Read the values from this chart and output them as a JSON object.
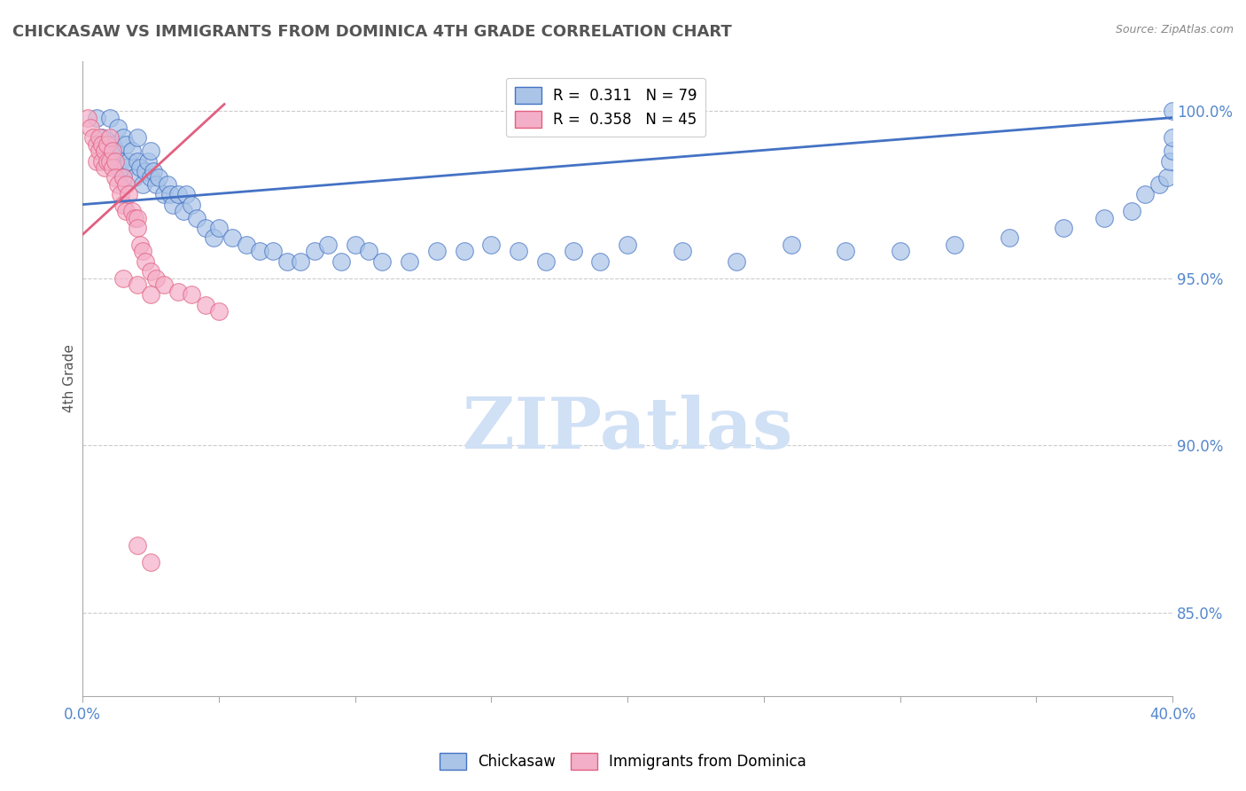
{
  "title": "CHICKASAW VS IMMIGRANTS FROM DOMINICA 4TH GRADE CORRELATION CHART",
  "source_text": "Source: ZipAtlas.com",
  "ylabel": "4th Grade",
  "xlim": [
    0.0,
    0.4
  ],
  "ylim": [
    0.825,
    1.015
  ],
  "yticks": [
    0.85,
    0.9,
    0.95,
    1.0
  ],
  "ytick_labels": [
    "85.0%",
    "90.0%",
    "95.0%",
    "100.0%"
  ],
  "xticks": [
    0.0,
    0.05,
    0.1,
    0.15,
    0.2,
    0.25,
    0.3,
    0.35,
    0.4
  ],
  "xtick_labels": [
    "0.0%",
    "",
    "",
    "",
    "",
    "",
    "",
    "",
    "40.0%"
  ],
  "blue_R": 0.311,
  "blue_N": 79,
  "pink_R": 0.358,
  "pink_N": 45,
  "blue_color": "#aac4e8",
  "pink_color": "#f4afc8",
  "blue_line_color": "#4472c4",
  "pink_line_color": "#e06080",
  "legend_label_blue": "Chickasaw",
  "legend_label_pink": "Immigrants from Dominica",
  "watermark": "ZIPatlas",
  "watermark_color": "#d0e0f5",
  "axis_color": "#5588cc",
  "grid_color": "#cccccc",
  "blue_x": [
    0.005,
    0.007,
    0.008,
    0.009,
    0.01,
    0.01,
    0.011,
    0.012,
    0.013,
    0.013,
    0.014,
    0.015,
    0.015,
    0.016,
    0.016,
    0.017,
    0.018,
    0.019,
    0.02,
    0.02,
    0.021,
    0.022,
    0.023,
    0.024,
    0.025,
    0.025,
    0.026,
    0.027,
    0.028,
    0.03,
    0.031,
    0.032,
    0.033,
    0.035,
    0.037,
    0.038,
    0.04,
    0.042,
    0.045,
    0.048,
    0.05,
    0.055,
    0.06,
    0.065,
    0.07,
    0.075,
    0.08,
    0.085,
    0.09,
    0.095,
    0.1,
    0.105,
    0.11,
    0.12,
    0.13,
    0.14,
    0.15,
    0.16,
    0.17,
    0.18,
    0.19,
    0.2,
    0.22,
    0.24,
    0.26,
    0.28,
    0.3,
    0.32,
    0.34,
    0.36,
    0.375,
    0.385,
    0.39,
    0.395,
    0.398,
    0.399,
    0.4,
    0.4,
    0.4
  ],
  "blue_y": [
    0.998,
    0.992,
    0.99,
    0.988,
    0.985,
    0.998,
    0.99,
    0.988,
    0.995,
    0.983,
    0.985,
    0.992,
    0.98,
    0.99,
    0.983,
    0.985,
    0.988,
    0.98,
    0.985,
    0.992,
    0.983,
    0.978,
    0.982,
    0.985,
    0.98,
    0.988,
    0.982,
    0.978,
    0.98,
    0.975,
    0.978,
    0.975,
    0.972,
    0.975,
    0.97,
    0.975,
    0.972,
    0.968,
    0.965,
    0.962,
    0.965,
    0.962,
    0.96,
    0.958,
    0.958,
    0.955,
    0.955,
    0.958,
    0.96,
    0.955,
    0.96,
    0.958,
    0.955,
    0.955,
    0.958,
    0.958,
    0.96,
    0.958,
    0.955,
    0.958,
    0.955,
    0.96,
    0.958,
    0.955,
    0.96,
    0.958,
    0.958,
    0.96,
    0.962,
    0.965,
    0.968,
    0.97,
    0.975,
    0.978,
    0.98,
    0.985,
    0.988,
    0.992,
    1.0
  ],
  "pink_x": [
    0.002,
    0.003,
    0.004,
    0.005,
    0.005,
    0.006,
    0.006,
    0.007,
    0.007,
    0.008,
    0.008,
    0.009,
    0.009,
    0.01,
    0.01,
    0.011,
    0.011,
    0.012,
    0.012,
    0.013,
    0.014,
    0.015,
    0.015,
    0.016,
    0.016,
    0.017,
    0.018,
    0.019,
    0.02,
    0.02,
    0.021,
    0.022,
    0.023,
    0.025,
    0.027,
    0.03,
    0.035,
    0.04,
    0.045,
    0.05,
    0.015,
    0.02,
    0.025,
    0.02,
    0.025
  ],
  "pink_y": [
    0.998,
    0.995,
    0.992,
    0.99,
    0.985,
    0.992,
    0.988,
    0.99,
    0.985,
    0.988,
    0.983,
    0.99,
    0.985,
    0.992,
    0.985,
    0.988,
    0.983,
    0.985,
    0.98,
    0.978,
    0.975,
    0.98,
    0.972,
    0.978,
    0.97,
    0.975,
    0.97,
    0.968,
    0.968,
    0.965,
    0.96,
    0.958,
    0.955,
    0.952,
    0.95,
    0.948,
    0.946,
    0.945,
    0.942,
    0.94,
    0.95,
    0.948,
    0.945,
    0.87,
    0.865
  ],
  "blue_trend_x": [
    0.0,
    0.4
  ],
  "blue_trend_y": [
    0.972,
    0.998
  ],
  "pink_trend_x": [
    0.0,
    0.052
  ],
  "pink_trend_y": [
    0.963,
    1.002
  ]
}
